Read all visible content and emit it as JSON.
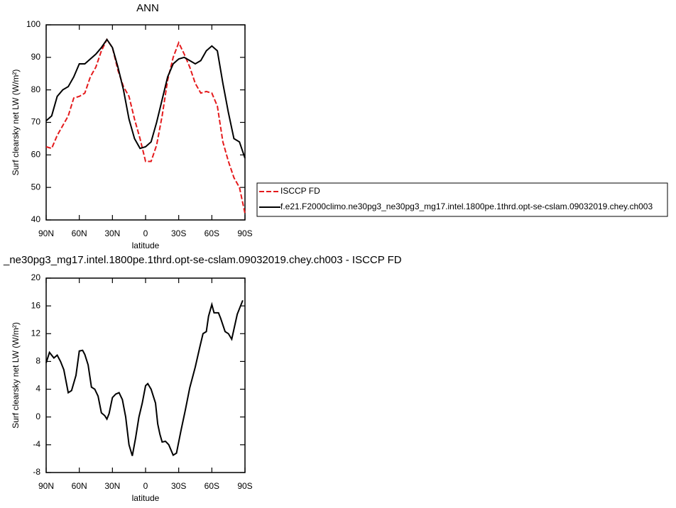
{
  "chart_data": [
    {
      "type": "line",
      "title": "ANN",
      "ylabel": "Surf clearsky net LW (W/m²)",
      "xlabel": "latitude",
      "xlim": [
        90,
        -90
      ],
      "xticks": [
        {
          "value": 90,
          "label": "90N"
        },
        {
          "value": 60,
          "label": "60N"
        },
        {
          "value": 30,
          "label": "30N"
        },
        0,
        {
          "value": -30,
          "label": "30S"
        },
        {
          "value": -60,
          "label": "60S"
        },
        {
          "value": -90,
          "label": "90S"
        }
      ],
      "ylim": [
        40,
        100
      ],
      "yticks": [
        40,
        50,
        60,
        70,
        80,
        90,
        100
      ],
      "legend": "right",
      "x": [
        90,
        85,
        80,
        75,
        70,
        65,
        60,
        55,
        50,
        45,
        40,
        35,
        30,
        25,
        20,
        15,
        10,
        5,
        0,
        -5,
        -10,
        -15,
        -20,
        -25,
        -30,
        -35,
        -40,
        -45,
        -50,
        -55,
        -60,
        -65,
        -70,
        -75,
        -80,
        -85,
        -90
      ],
      "series": [
        {
          "name": "ISCCP FD",
          "color": "#e41a1c",
          "dashed": true,
          "values": [
            62.5,
            62,
            66,
            69,
            72,
            77.5,
            78,
            79,
            84,
            87,
            92,
            95.5,
            93,
            86,
            81,
            78,
            71,
            65,
            58,
            58,
            63,
            72,
            83,
            90,
            94.5,
            91,
            87,
            82,
            79,
            79.5,
            79,
            75,
            64,
            58,
            53,
            50,
            42
          ]
        },
        {
          "name": "f.e21.F2000climo.ne30pg3_ne30pg3_mg17.intel.1800pe.1thrd.opt-se-cslam.09032019.chey.ch003",
          "color": "#000000",
          "dashed": false,
          "values": [
            70.5,
            72,
            78,
            80,
            81,
            84,
            88,
            88,
            89.5,
            91,
            93,
            95.5,
            93,
            87,
            80,
            71,
            65,
            62,
            62.5,
            64,
            70,
            77,
            84,
            88,
            89.5,
            90,
            89,
            88,
            89,
            92,
            93.5,
            92,
            82,
            73,
            65,
            64,
            59
          ]
        }
      ]
    },
    {
      "type": "line",
      "title": "_ne30pg3_mg17.intel.1800pe.1thrd.opt-se-cslam.09032019.chey.ch003 - ISCCP FD",
      "ylabel": "Surf clearsky net LW (W/m²)",
      "xlabel": "latitude",
      "xlim": [
        90,
        -90
      ],
      "xticks": [
        {
          "value": 90,
          "label": "90N"
        },
        {
          "value": 60,
          "label": "60N"
        },
        {
          "value": 30,
          "label": "30N"
        },
        0,
        {
          "value": -30,
          "label": "30S"
        },
        {
          "value": -60,
          "label": "60S"
        },
        {
          "value": -90,
          "label": "90S"
        }
      ],
      "ylim": [
        -8,
        20
      ],
      "yticks": [
        -8,
        -4,
        0,
        4,
        8,
        12,
        16,
        20
      ],
      "x": [
        90,
        87,
        83,
        80,
        77,
        74,
        70,
        67,
        63,
        60,
        57,
        55,
        52,
        49,
        46,
        43,
        40,
        37,
        35,
        33,
        30,
        27,
        24,
        21,
        18,
        15,
        12,
        9,
        6,
        3,
        0,
        -2,
        -5,
        -9,
        -11,
        -13,
        -15,
        -18,
        -21,
        -25,
        -28,
        -32,
        -36,
        -40,
        -45,
        -49,
        -52,
        -55,
        -57,
        -60,
        -62,
        -66,
        -68,
        -72,
        -75,
        -78,
        -83,
        -88
      ],
      "series": [
        {
          "color": "#000000",
          "dashed": false,
          "values": [
            7.8,
            9.3,
            8.5,
            8.9,
            8,
            6.8,
            3.5,
            3.8,
            6,
            9.5,
            9.6,
            9,
            7.5,
            4.3,
            4,
            3,
            0.6,
            0.2,
            -0.3,
            0.5,
            2.8,
            3.3,
            3.5,
            2.5,
            0,
            -4,
            -5.6,
            -3,
            0,
            2,
            4.5,
            4.8,
            4,
            2,
            -1,
            -2.5,
            -3.6,
            -3.5,
            -4,
            -5.5,
            -5.2,
            -2,
            1,
            4.2,
            7.2,
            10,
            12,
            12.3,
            14.5,
            16.2,
            15,
            15,
            14.2,
            12.3,
            12,
            11.2,
            14.8,
            16.8
          ]
        }
      ]
    }
  ]
}
